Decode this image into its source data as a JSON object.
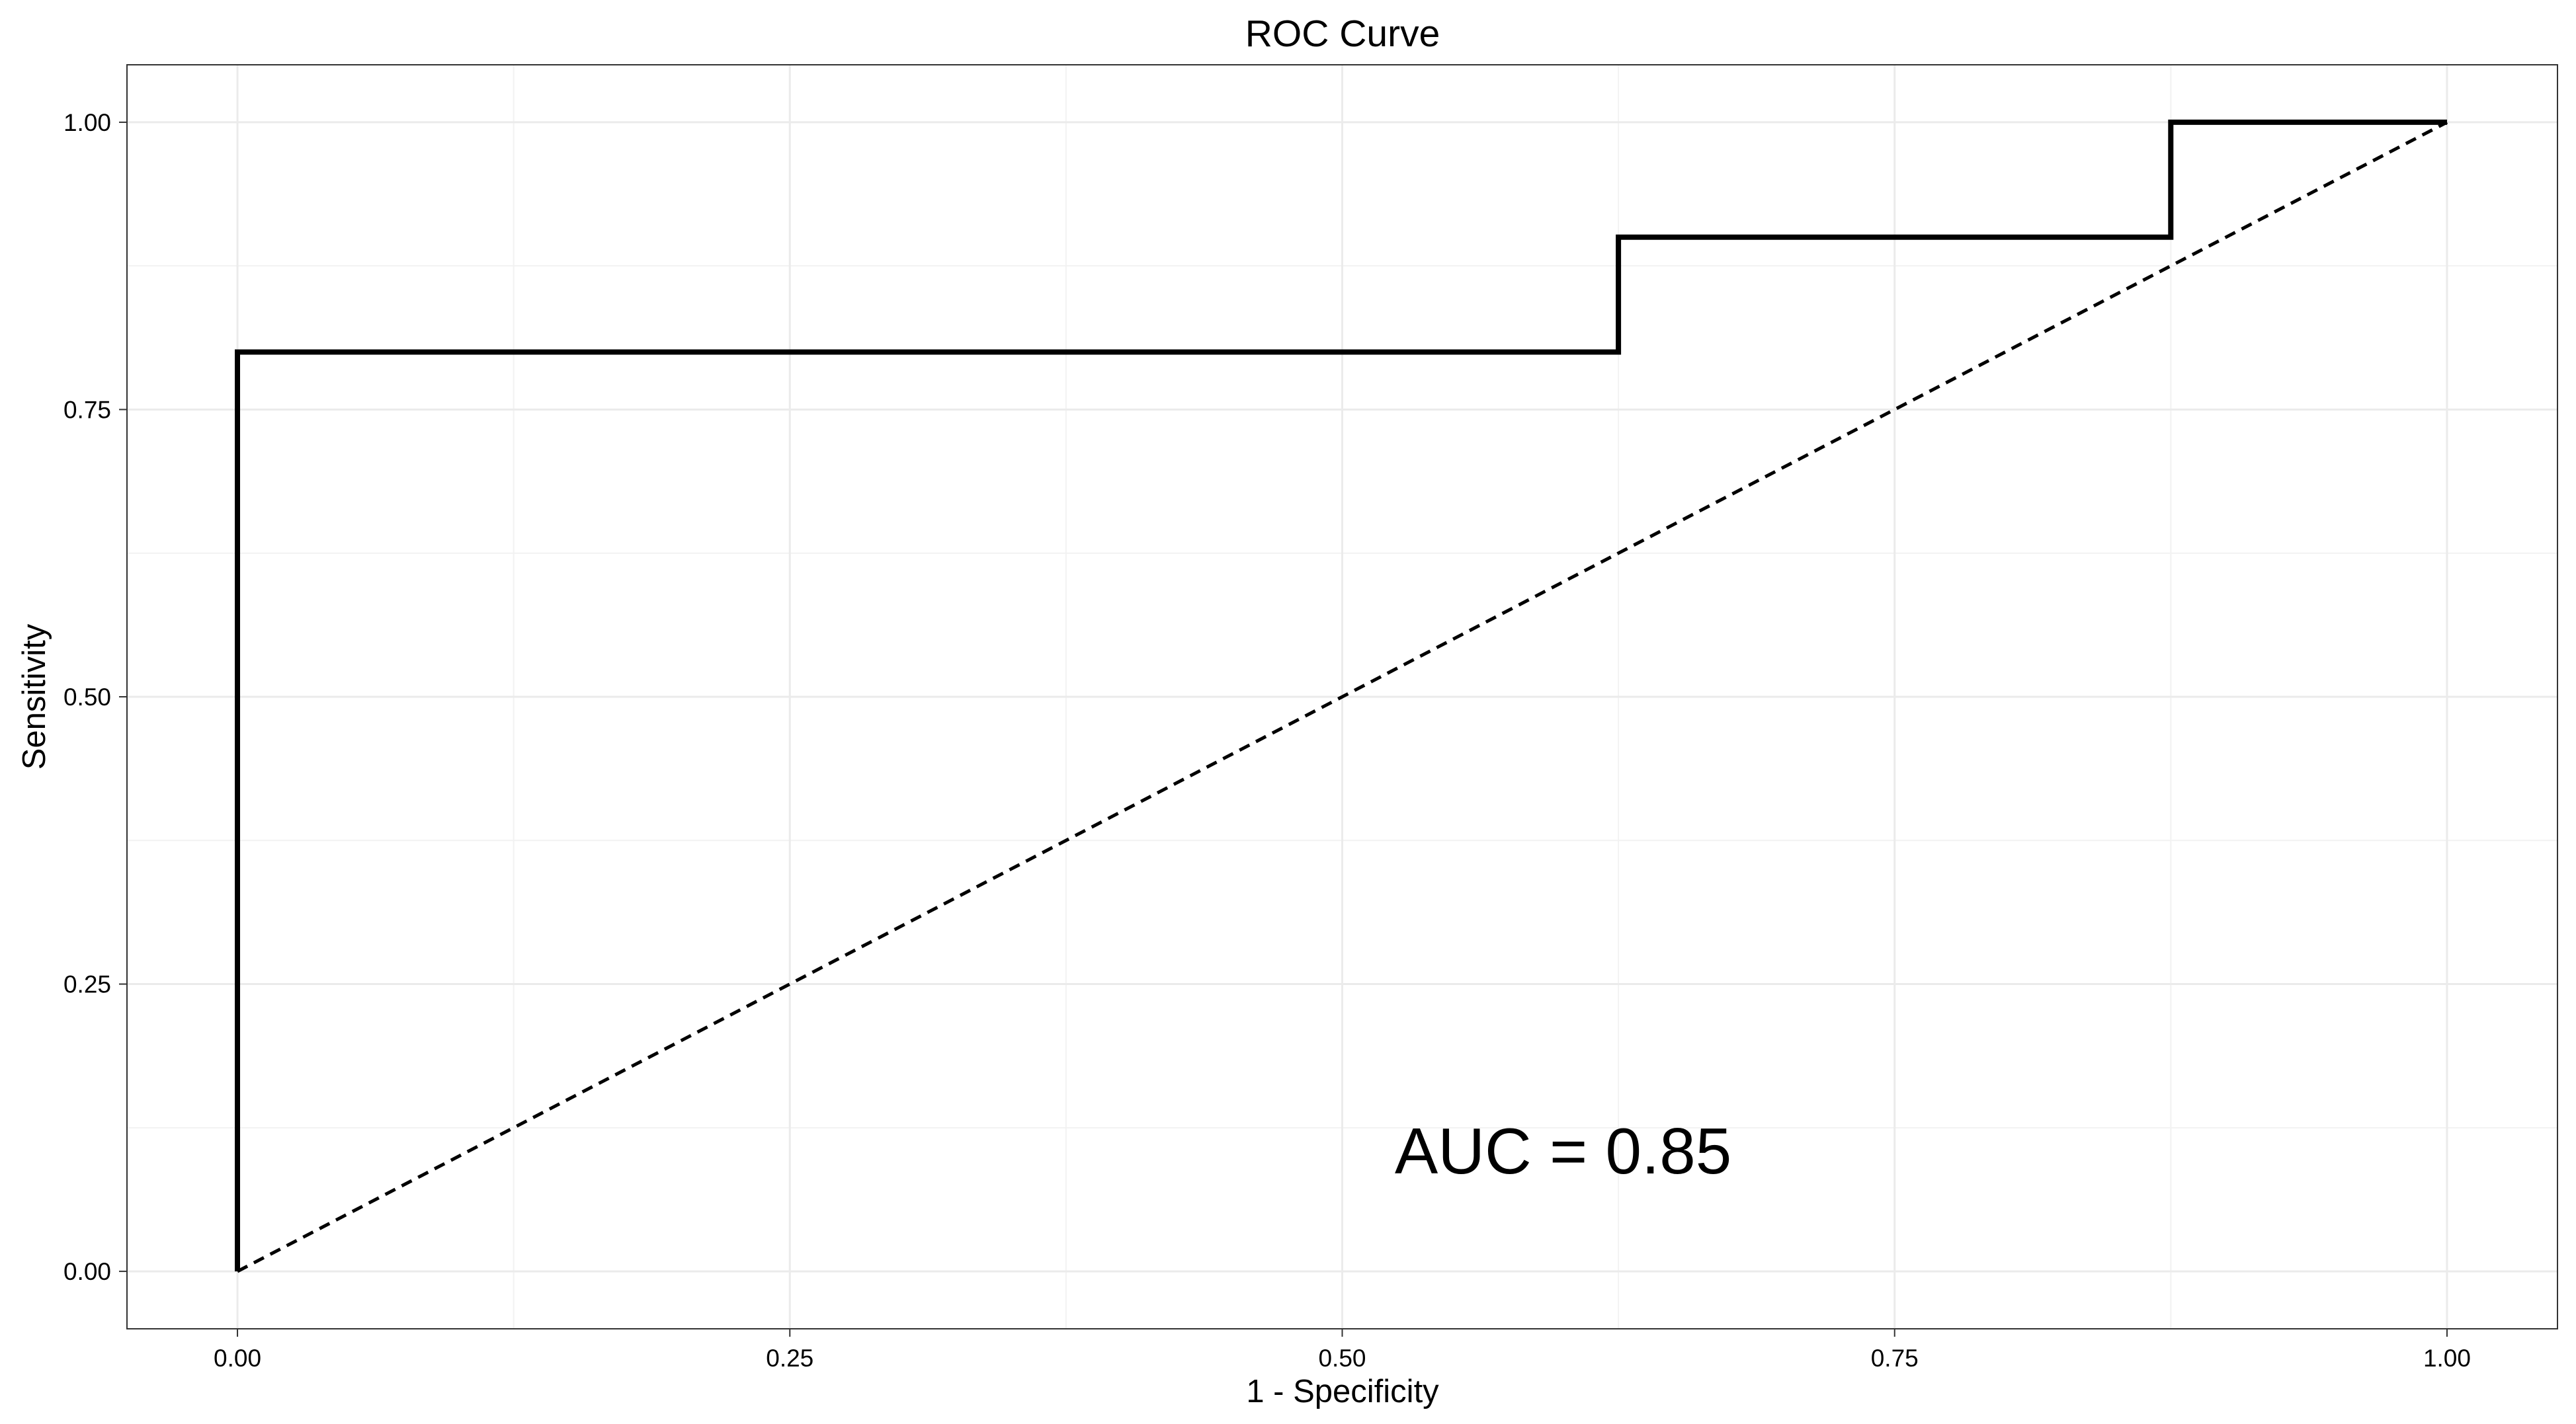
{
  "chart_data": {
    "type": "line",
    "title": "ROC Curve",
    "xlabel": "1 - Specificity",
    "ylabel": "Sensitivity",
    "xlim": [
      -0.05,
      1.05
    ],
    "ylim": [
      -0.05,
      1.05
    ],
    "x_ticks": [
      0,
      0.25,
      0.5,
      0.75,
      1
    ],
    "x_tick_labels": [
      "0.00",
      "0.25",
      "0.50",
      "0.75",
      "1.00"
    ],
    "y_ticks": [
      0,
      0.25,
      0.5,
      0.75,
      1
    ],
    "y_tick_labels": [
      "0.00",
      "0.25",
      "0.50",
      "0.75",
      "1.00"
    ],
    "grid": true,
    "series": [
      {
        "style": "solid-step",
        "color": "#000000",
        "points": [
          [
            0,
            0
          ],
          [
            0,
            0.8
          ],
          [
            0.625,
            0.8
          ],
          [
            0.625,
            0.9
          ],
          [
            0.875,
            0.9
          ],
          [
            0.875,
            1
          ],
          [
            1,
            1
          ]
        ]
      },
      {
        "style": "dashed",
        "color": "#000000",
        "points": [
          [
            0,
            0
          ],
          [
            1,
            1
          ]
        ]
      }
    ],
    "annotations": [
      {
        "text": "AUC = 0.85",
        "x": 0.6,
        "y": 0.1
      }
    ]
  }
}
